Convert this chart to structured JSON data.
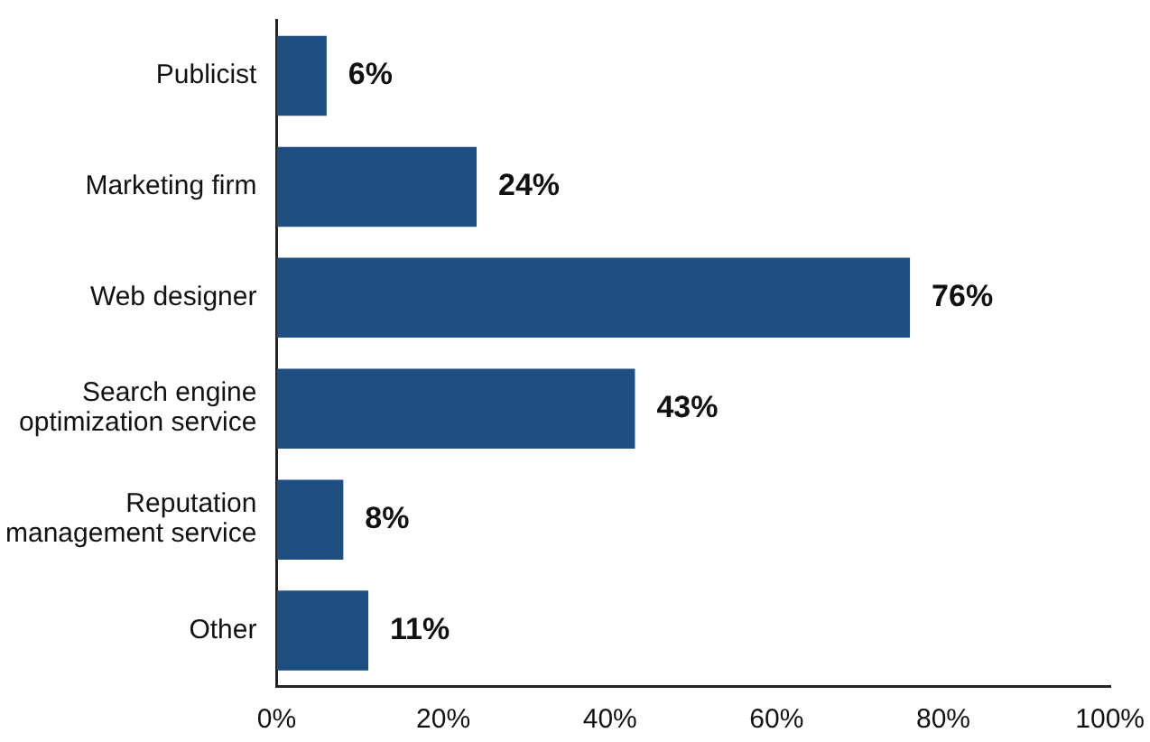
{
  "chart_data": {
    "type": "bar",
    "orientation": "horizontal",
    "categories": [
      "Publicist",
      "Marketing firm",
      "Web designer",
      "Search engine optimization service",
      "Reputation management service",
      "Other"
    ],
    "values": [
      6,
      24,
      76,
      43,
      8,
      11
    ],
    "value_labels": [
      "6%",
      "24%",
      "76%",
      "43%",
      "8%",
      "11%"
    ],
    "color": "#1f4e83",
    "xlim": [
      0,
      100
    ],
    "xticks": [
      {
        "value": 0,
        "label": "0%"
      },
      {
        "value": 20,
        "label": "20%"
      },
      {
        "value": 40,
        "label": "40%"
      },
      {
        "value": 60,
        "label": "60%"
      },
      {
        "value": 80,
        "label": "80%"
      },
      {
        "value": 100,
        "label": "100%"
      }
    ],
    "grid": false,
    "legend": false
  }
}
